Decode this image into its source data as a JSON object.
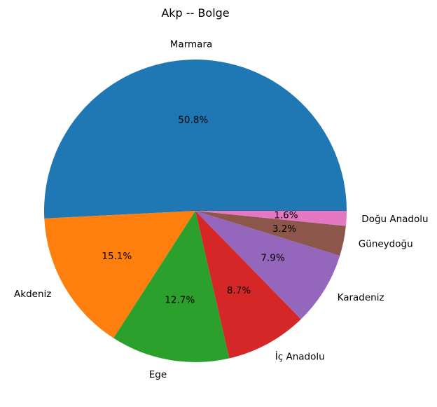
{
  "chart_data": {
    "type": "pie",
    "title": "Akp -- Bolge",
    "start_angle_deg": 0,
    "direction": "counterclockwise",
    "slices": [
      {
        "label": "Marmara",
        "percent_label": "50.8%",
        "value": 50.8,
        "color": "#1f77b4"
      },
      {
        "label": "Akdeniz",
        "percent_label": "15.1%",
        "value": 15.1,
        "color": "#ff7f0e"
      },
      {
        "label": "Ege",
        "percent_label": "12.7%",
        "value": 12.7,
        "color": "#2ca02c"
      },
      {
        "label": "İç Anadolu",
        "percent_label": "8.7%",
        "value": 8.7,
        "color": "#d62728"
      },
      {
        "label": "Karadeniz",
        "percent_label": "7.9%",
        "value": 7.9,
        "color": "#9467bd"
      },
      {
        "label": "Güneydoğu",
        "percent_label": "3.2%",
        "value": 3.2,
        "color": "#8c564b"
      },
      {
        "label": "Doğu Anadolu",
        "percent_label": "1.6%",
        "value": 1.6,
        "color": "#e377c2"
      }
    ]
  }
}
